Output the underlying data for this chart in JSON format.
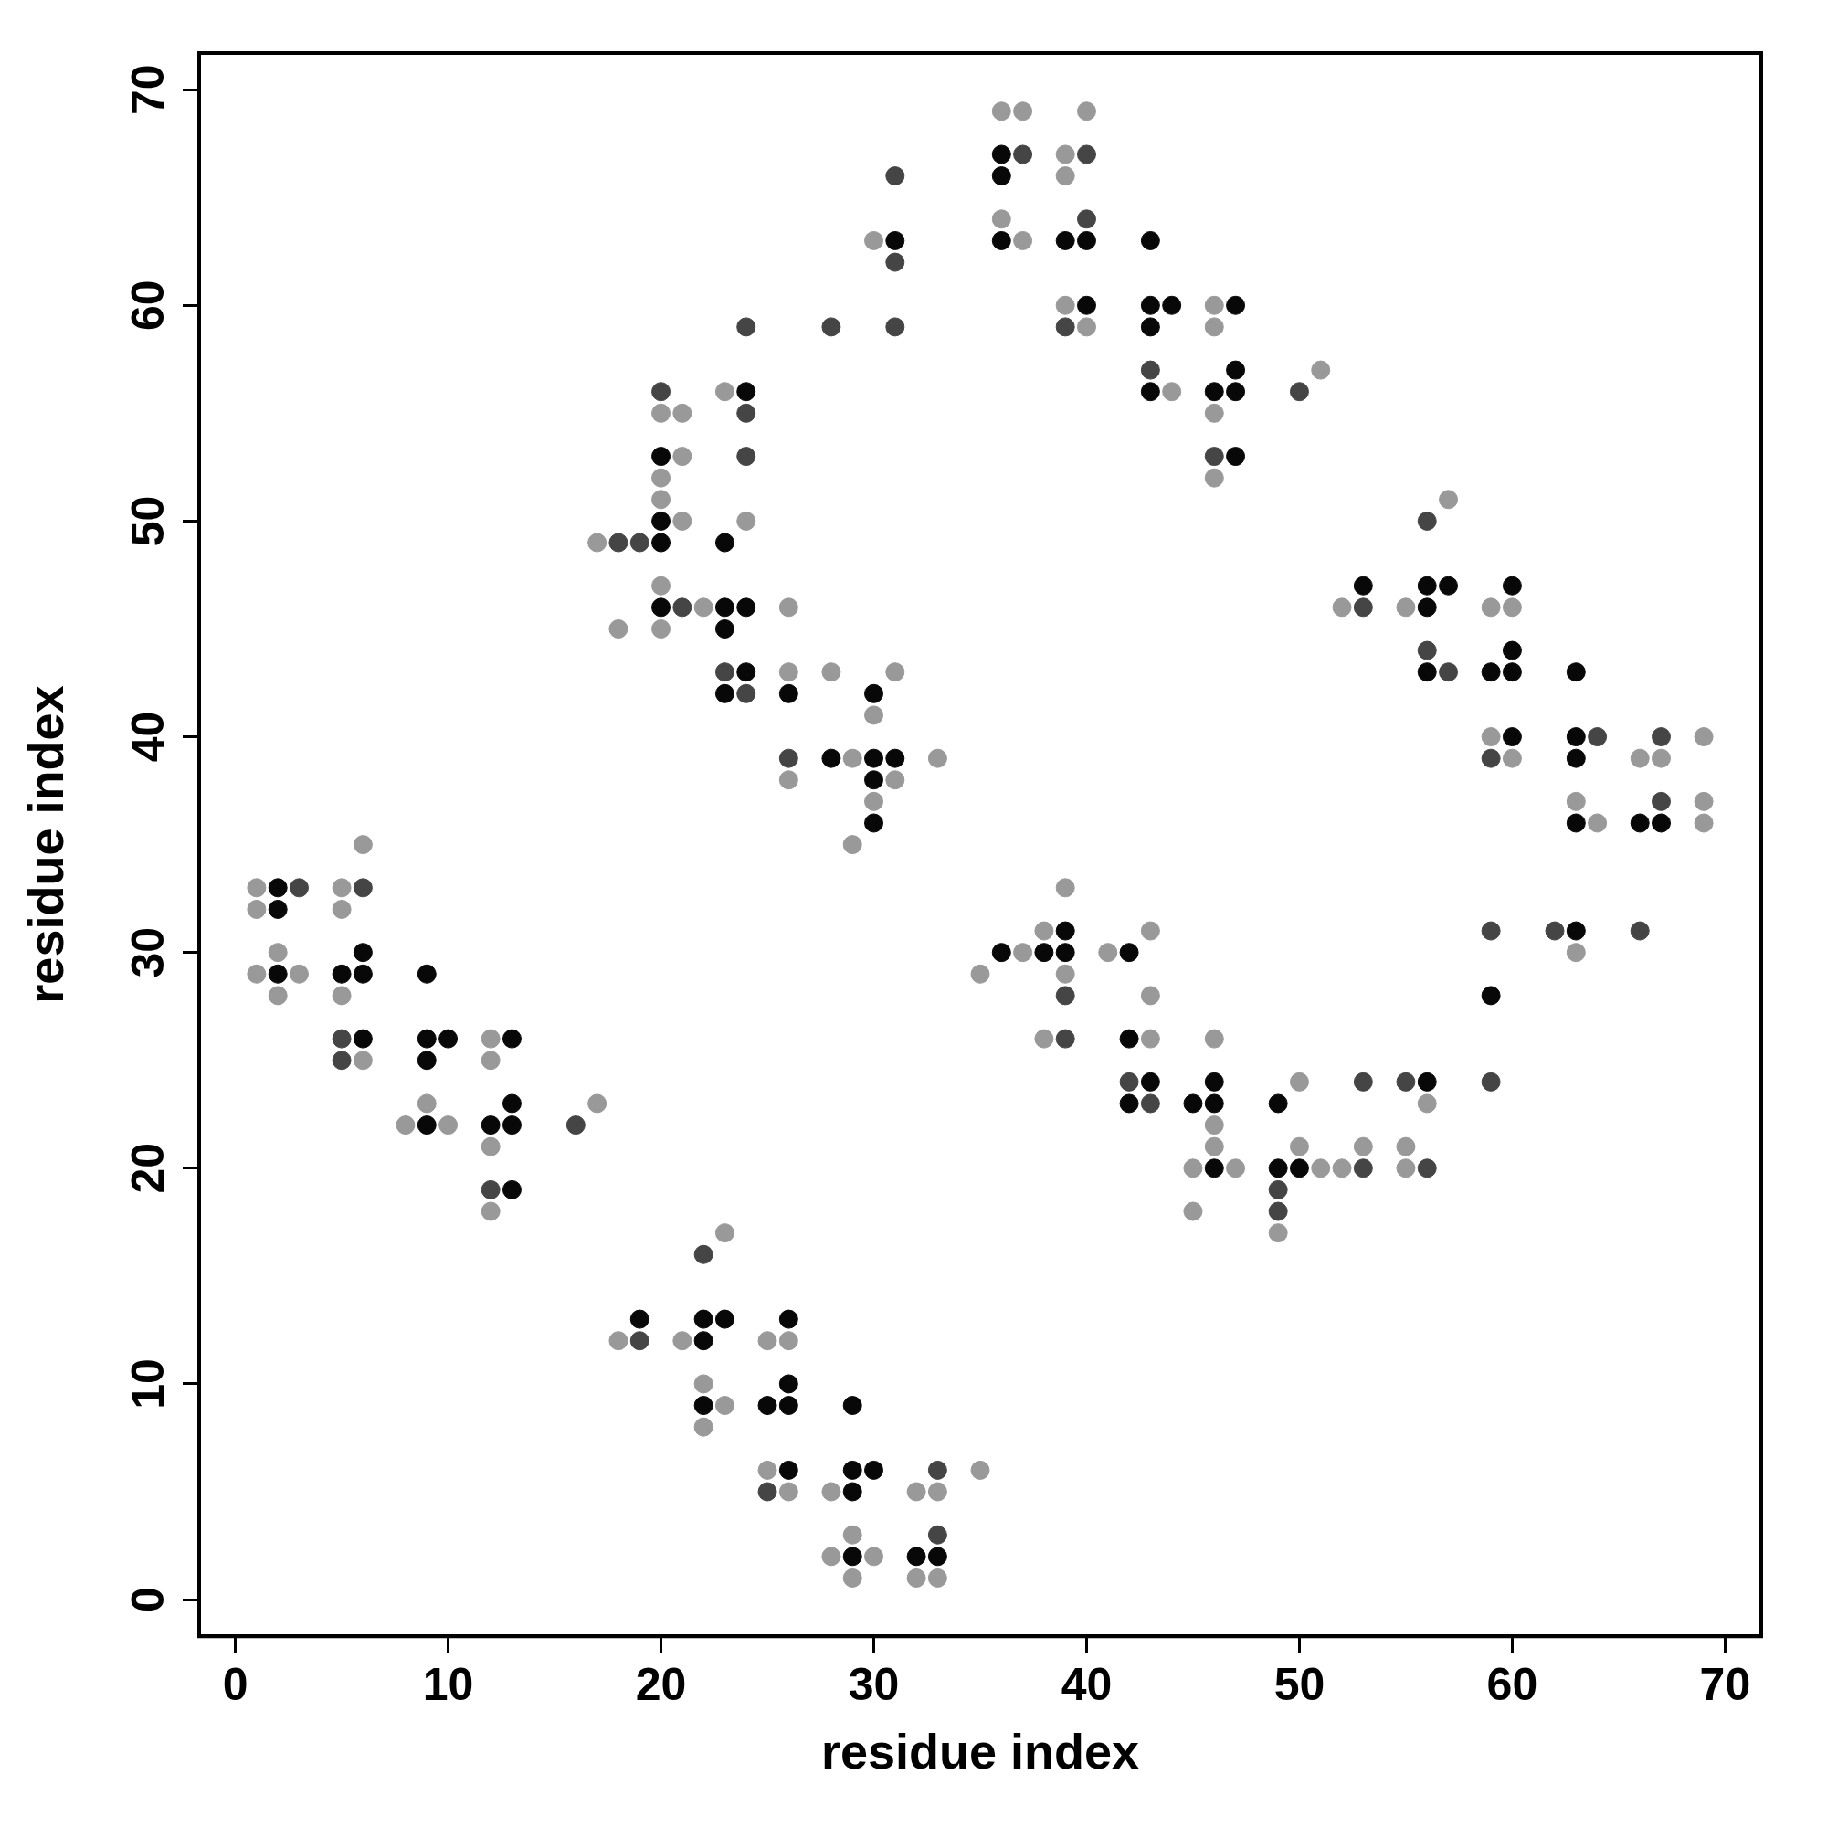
{
  "chart_data": {
    "type": "scatter",
    "xlabel": "residue index",
    "ylabel": "residue index",
    "xlim": [
      -1.7,
      71.7
    ],
    "ylim": [
      -1.7,
      71.7
    ],
    "xticks": [
      0,
      10,
      20,
      30,
      40,
      50,
      60,
      70
    ],
    "yticks": [
      0,
      10,
      20,
      30,
      40,
      50,
      60,
      70
    ],
    "grid": false,
    "legend": false,
    "marker": "circle",
    "series": [
      {
        "color": "#080808",
        "x": [
          36,
          36,
          31,
          36,
          39,
          40,
          43,
          40,
          43,
          44,
          47,
          43,
          47,
          24,
          43,
          46,
          47,
          20,
          47,
          20,
          20,
          23,
          53,
          56,
          57,
          60,
          20,
          23,
          24,
          56,
          23,
          60,
          24,
          56,
          59,
          60,
          63,
          23,
          26,
          30,
          60,
          63,
          28,
          30,
          31,
          63,
          30,
          30,
          63,
          66,
          67,
          2,
          2,
          39,
          63,
          6,
          36,
          38,
          39,
          42,
          2,
          5,
          6,
          9,
          59,
          6,
          9,
          10,
          13,
          42,
          9,
          43,
          46,
          56,
          13,
          42,
          45,
          46,
          49,
          9,
          12,
          13,
          46,
          49,
          50,
          13,
          19,
          22,
          23,
          26,
          22,
          26,
          22,
          25,
          26,
          29,
          26,
          29,
          30,
          29,
          29,
          32,
          33
        ],
        "values": [
          67,
          66,
          63,
          63,
          63,
          63,
          63,
          60,
          60,
          60,
          60,
          59,
          57,
          56,
          56,
          56,
          56,
          53,
          53,
          50,
          49,
          49,
          47,
          47,
          47,
          47,
          46,
          46,
          46,
          46,
          45,
          44,
          43,
          43,
          43,
          43,
          43,
          42,
          42,
          42,
          40,
          40,
          39,
          39,
          39,
          39,
          38,
          36,
          36,
          36,
          36,
          33,
          32,
          31,
          31,
          30,
          30,
          30,
          30,
          30,
          29,
          29,
          29,
          29,
          28,
          26,
          26,
          26,
          26,
          26,
          25,
          24,
          24,
          24,
          23,
          23,
          23,
          23,
          23,
          22,
          22,
          22,
          20,
          20,
          20,
          19,
          13,
          13,
          13,
          13,
          12,
          10,
          9,
          9,
          9,
          9,
          6,
          6,
          6,
          5,
          2,
          2,
          2
        ]
      },
      {
        "color": "#454545",
        "x": [
          37,
          40,
          31,
          40,
          31,
          24,
          28,
          31,
          39,
          43,
          20,
          50,
          24,
          24,
          46,
          56,
          18,
          19,
          21,
          53,
          56,
          23,
          57,
          24,
          64,
          67,
          26,
          59,
          67,
          3,
          6,
          59,
          62,
          66,
          39,
          5,
          39,
          5,
          42,
          53,
          55,
          59,
          43,
          16,
          53,
          56,
          12,
          49,
          49,
          22,
          19,
          33,
          25,
          33
        ],
        "values": [
          67,
          67,
          66,
          64,
          62,
          59,
          59,
          59,
          59,
          57,
          56,
          56,
          55,
          53,
          53,
          50,
          49,
          49,
          46,
          46,
          44,
          43,
          43,
          42,
          40,
          40,
          39,
          39,
          37,
          33,
          33,
          31,
          31,
          31,
          28,
          26,
          26,
          25,
          24,
          24,
          24,
          24,
          23,
          22,
          20,
          20,
          19,
          19,
          18,
          16,
          12,
          6,
          5,
          3
        ]
      },
      {
        "color": "#999999",
        "x": [
          36,
          37,
          40,
          39,
          39,
          36,
          30,
          37,
          39,
          46,
          40,
          46,
          51,
          23,
          44,
          20,
          21,
          46,
          21,
          20,
          46,
          20,
          57,
          21,
          24,
          17,
          20,
          22,
          26,
          52,
          55,
          59,
          60,
          18,
          20,
          26,
          28,
          31,
          30,
          59,
          69,
          29,
          33,
          60,
          66,
          67,
          26,
          31,
          30,
          63,
          69,
          64,
          69,
          6,
          29,
          1,
          5,
          39,
          1,
          5,
          38,
          43,
          2,
          37,
          41,
          63,
          1,
          3,
          35,
          39,
          2,
          5,
          43,
          12,
          38,
          43,
          46,
          6,
          12,
          50,
          9,
          17,
          56,
          8,
          10,
          46,
          12,
          46,
          50,
          53,
          55,
          45,
          47,
          51,
          52,
          55,
          12,
          45,
          23,
          49,
          18,
          21,
          25,
          26,
          22,
          23,
          22,
          25,
          35,
          26,
          28,
          32,
          33,
          29,
          28,
          30,
          29,
          32,
          33
        ],
        "values": [
          69,
          69,
          69,
          67,
          66,
          64,
          63,
          63,
          60,
          60,
          59,
          59,
          57,
          56,
          56,
          55,
          55,
          55,
          53,
          52,
          52,
          51,
          51,
          50,
          50,
          49,
          47,
          46,
          46,
          46,
          46,
          46,
          46,
          45,
          45,
          43,
          43,
          43,
          41,
          40,
          40,
          39,
          39,
          39,
          39,
          39,
          38,
          38,
          37,
          37,
          37,
          36,
          36,
          35,
          35,
          33,
          33,
          33,
          32,
          32,
          31,
          31,
          30,
          30,
          30,
          30,
          29,
          29,
          29,
          29,
          28,
          28,
          28,
          26,
          26,
          26,
          26,
          25,
          25,
          24,
          23,
          23,
          23,
          22,
          22,
          22,
          21,
          21,
          21,
          21,
          21,
          20,
          20,
          20,
          20,
          20,
          18,
          18,
          17,
          17,
          12,
          12,
          12,
          12,
          10,
          9,
          8,
          6,
          6,
          5,
          5,
          5,
          5,
          3,
          2,
          2,
          1,
          1,
          1
        ]
      }
    ]
  }
}
